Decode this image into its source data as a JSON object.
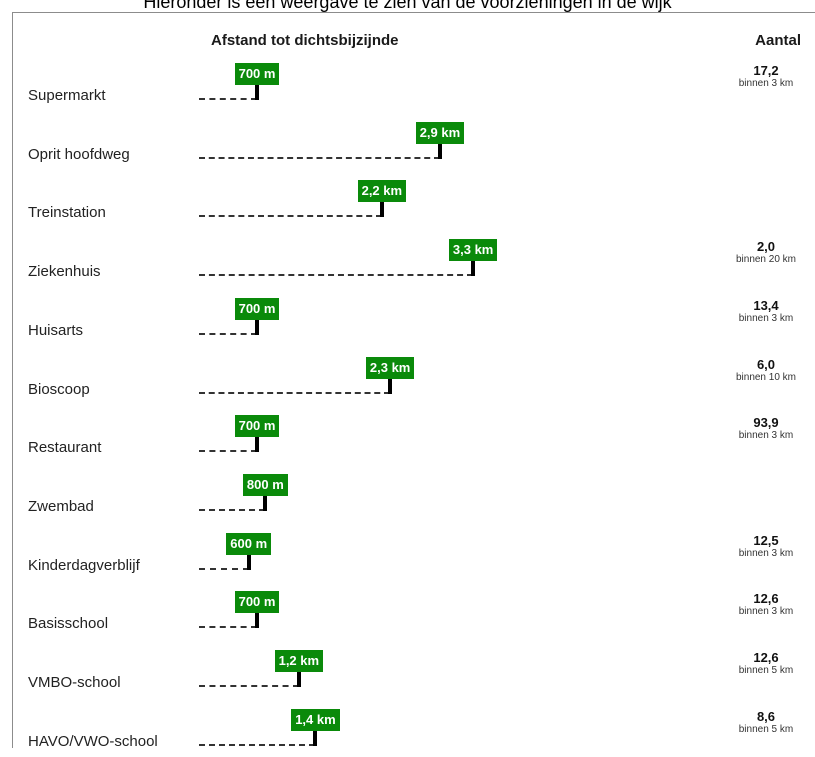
{
  "caption": "Hieronder is een weergave te zien van de voorzieningen in de wijk ",
  "chart_data": {
    "type": "bar",
    "header_distance": "Afstand tot dichtsbijzijnde",
    "header_count": "Aantal",
    "x_unit": "km",
    "xlim": [
      0,
      4
    ],
    "rows": [
      {
        "label": "Supermarkt",
        "distance_km": 0.7,
        "distance_label": "700 m",
        "count": "17,2",
        "count_note": "binnen 3 km"
      },
      {
        "label": "Oprit hoofdweg",
        "distance_km": 2.9,
        "distance_label": "2,9 km",
        "count": "",
        "count_note": ""
      },
      {
        "label": "Treinstation",
        "distance_km": 2.2,
        "distance_label": "2,2 km",
        "count": "",
        "count_note": ""
      },
      {
        "label": "Ziekenhuis",
        "distance_km": 3.3,
        "distance_label": "3,3 km",
        "count": "2,0",
        "count_note": "binnen 20 km"
      },
      {
        "label": "Huisarts",
        "distance_km": 0.7,
        "distance_label": "700 m",
        "count": "13,4",
        "count_note": "binnen 3 km"
      },
      {
        "label": "Bioscoop",
        "distance_km": 2.3,
        "distance_label": "2,3 km",
        "count": "6,0",
        "count_note": "binnen 10 km"
      },
      {
        "label": "Restaurant",
        "distance_km": 0.7,
        "distance_label": "700 m",
        "count": "93,9",
        "count_note": "binnen 3 km"
      },
      {
        "label": "Zwembad",
        "distance_km": 0.8,
        "distance_label": "800 m",
        "count": "",
        "count_note": ""
      },
      {
        "label": "Kinderdagverblijf",
        "distance_km": 0.6,
        "distance_label": "600 m",
        "count": "12,5",
        "count_note": "binnen 3 km"
      },
      {
        "label": "Basisschool",
        "distance_km": 0.7,
        "distance_label": "700 m",
        "count": "12,6",
        "count_note": "binnen 3 km"
      },
      {
        "label": "VMBO-school",
        "distance_km": 1.2,
        "distance_label": "1,2 km",
        "count": "12,6",
        "count_note": "binnen 5 km"
      },
      {
        "label": "HAVO/VWO-school",
        "distance_km": 1.4,
        "distance_label": "1,4 km",
        "count": "8,6",
        "count_note": "binnen 5 km"
      }
    ],
    "colors": {
      "marker": "#0a8a0a",
      "marker_text": "#ffffff",
      "baseline": "#333333"
    }
  }
}
